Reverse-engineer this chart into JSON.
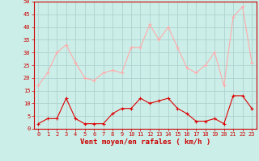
{
  "x": [
    0,
    1,
    2,
    3,
    4,
    5,
    6,
    7,
    8,
    9,
    10,
    11,
    12,
    13,
    14,
    15,
    16,
    17,
    18,
    19,
    20,
    21,
    22,
    23
  ],
  "wind_avg": [
    2,
    4,
    4,
    12,
    4,
    2,
    2,
    2,
    6,
    8,
    8,
    12,
    10,
    11,
    12,
    8,
    6,
    3,
    3,
    4,
    2,
    13,
    13,
    8
  ],
  "wind_gust": [
    17,
    22,
    30,
    33,
    26,
    20,
    19,
    22,
    23,
    22,
    32,
    32,
    41,
    35,
    40,
    32,
    24,
    22,
    25,
    30,
    17,
    44,
    48,
    26
  ],
  "avg_color": "#dd0000",
  "gust_color": "#ffaaaa",
  "bg_color": "#cceee8",
  "grid_color": "#aacccc",
  "xlabel": "Vent moyen/en rafales ( km/h )",
  "ylim": [
    0,
    50
  ],
  "yticks": [
    0,
    5,
    10,
    15,
    20,
    25,
    30,
    35,
    40,
    45,
    50
  ],
  "xticks": [
    0,
    1,
    2,
    3,
    4,
    5,
    6,
    7,
    8,
    9,
    10,
    11,
    12,
    13,
    14,
    15,
    16,
    17,
    18,
    19,
    20,
    21,
    22,
    23
  ],
  "marker": "+",
  "linewidth": 0.8,
  "markersize": 3,
  "tick_fontsize": 5.0,
  "xlabel_fontsize": 6.5,
  "label_color": "#cc0000"
}
